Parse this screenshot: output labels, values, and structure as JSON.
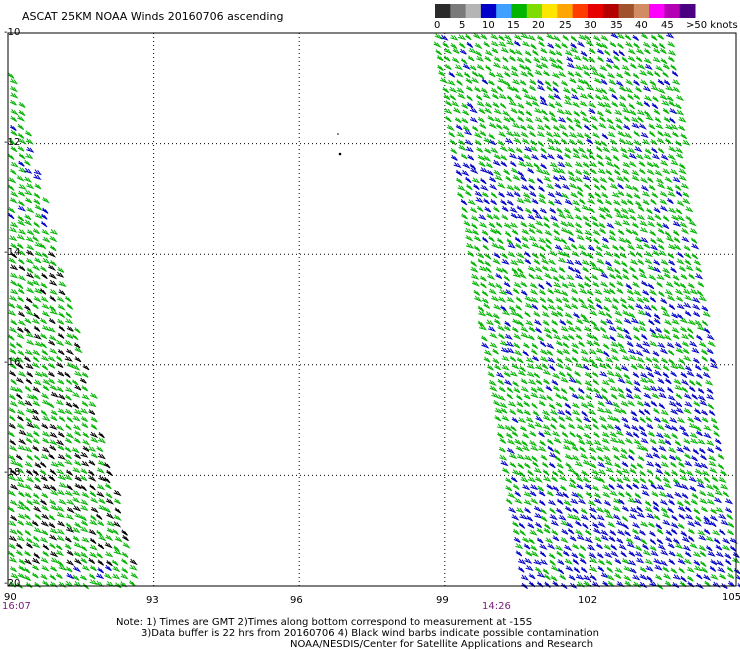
{
  "title": "ASCAT 25KM NOAA Winds 20160706 ascending",
  "colorbar": {
    "labels": [
      "0",
      "5",
      "10",
      "15",
      "20",
      "25",
      "30",
      "35",
      "40",
      "45",
      ">50 knots"
    ],
    "colors": [
      "#2b2b2b",
      "#7a7a7a",
      "#b5b5b5",
      "#0000c8",
      "#3fa0ff",
      "#00b400",
      "#7fdc00",
      "#ffe600",
      "#ffa500",
      "#ff3c00",
      "#e60000",
      "#b40000",
      "#a0522d",
      "#d28c64",
      "#ff00ff",
      "#b400b4",
      "#4b0082"
    ]
  },
  "axes": {
    "lat_labels": [
      "-10",
      "-12",
      "-14",
      "-16",
      "-18",
      "-20"
    ],
    "lon_labels": [
      "90",
      "93",
      "96",
      "99",
      "102",
      "105"
    ],
    "lat_range": [
      -20,
      -10
    ],
    "lon_range": [
      90,
      105
    ]
  },
  "swath_times": [
    "16:07",
    "14:26"
  ],
  "notes": [
    "Note: 1) Times are GMT 2)Times along bottom correspond to measurement at -15S",
    "3)Data buffer is 22 hrs from 20160706 4) Black wind barbs indicate possible contamination",
    "NOAA/NESDIS/Center for Satellite Applications and Research"
  ],
  "barb_colors": {
    "low": "#0000c8",
    "mid": "#00b400",
    "contaminated": "#000000"
  }
}
